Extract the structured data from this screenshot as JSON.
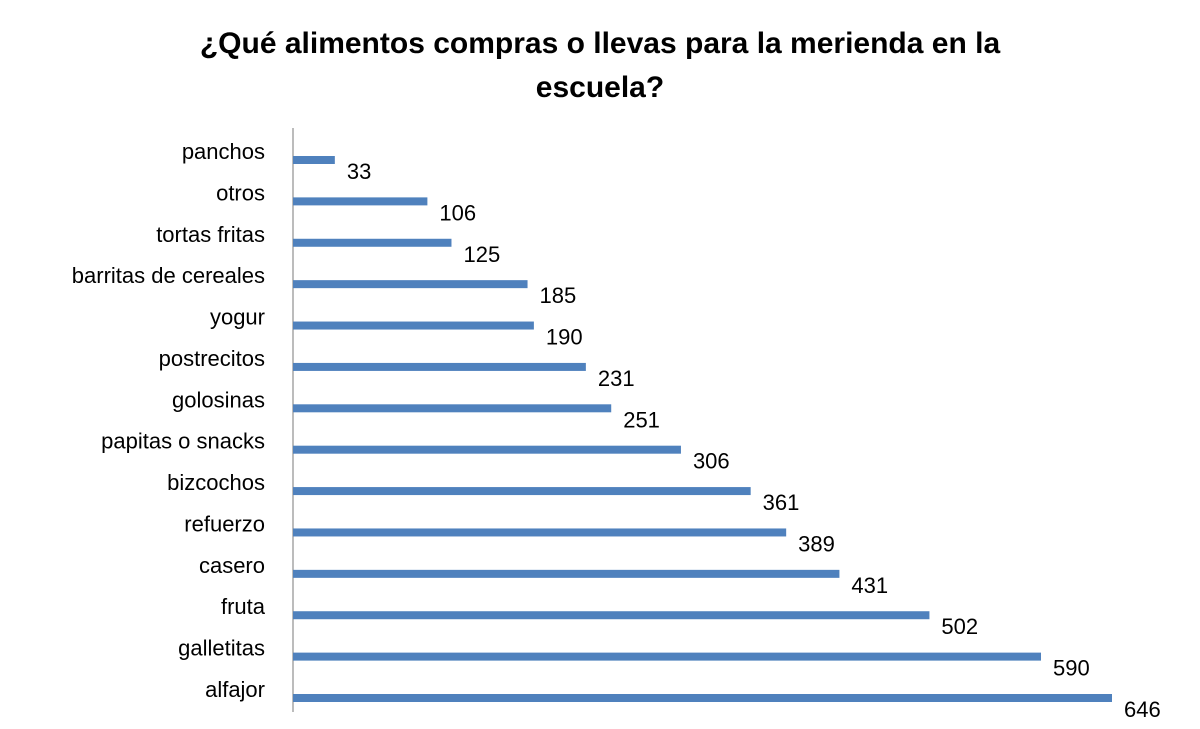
{
  "chart_data": {
    "type": "bar",
    "orientation": "horizontal",
    "title": "¿Qué alimentos compras o llevas para la merienda en la escuela?",
    "categories": [
      "panchos",
      "otros",
      "tortas fritas",
      "barritas de cereales",
      "yogur",
      "postrecitos",
      "golosinas",
      "papitas o snacks",
      "bizcochos",
      "refuerzo",
      "casero",
      "fruta",
      "galletitas",
      "alfajor"
    ],
    "values": [
      33,
      106,
      125,
      185,
      190,
      231,
      251,
      306,
      361,
      389,
      431,
      502,
      590,
      646
    ],
    "color": "#4f81bd"
  }
}
